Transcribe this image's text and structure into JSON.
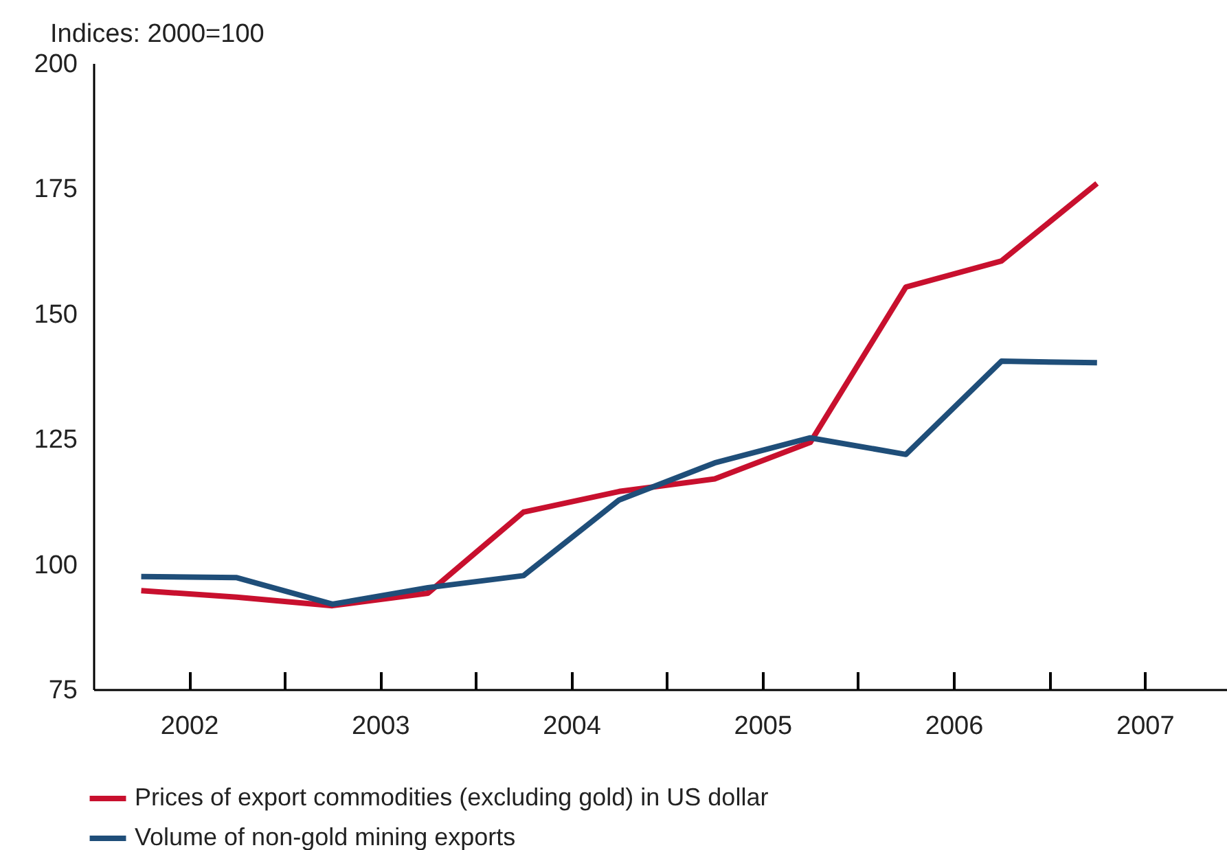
{
  "chart_data": {
    "type": "line",
    "ylabel": "Indices: 2000=100",
    "x": [
      2001.75,
      2002.25,
      2002.75,
      2003.25,
      2003.75,
      2004.25,
      2004.75,
      2005.25,
      2005.75,
      2006.25,
      2006.75
    ],
    "series": [
      {
        "name": "Prices of export commodities (excluding gold) in US dollar",
        "color": "#c8102e",
        "values": [
          94.7,
          93.4,
          91.7,
          94.2,
          110.4,
          114.5,
          117,
          124.3,
          155.3,
          160.5,
          176
        ]
      },
      {
        "name": "Volume of non-gold mining exports",
        "color": "#1f4e79",
        "values": [
          97.5,
          97.3,
          92,
          95.3,
          97.7,
          112.8,
          120.2,
          125.2,
          121.9,
          140.5,
          140.2
        ]
      }
    ],
    "xlim": [
      2001.5,
      2007.43
    ],
    "xticks": [
      2002,
      {
        "value": 2002.5,
        "label": null
      },
      2003,
      {
        "value": 2003.5,
        "label": null
      },
      2004,
      {
        "value": 2004.5,
        "label": null
      },
      2005,
      {
        "value": 2005.5,
        "label": null
      },
      2006,
      {
        "value": 2006.5,
        "label": null
      },
      2007
    ],
    "ylim": [
      75,
      200
    ],
    "yticks": [
      75,
      100,
      125,
      150,
      175,
      200
    ],
    "grid": false,
    "legend": "bottom",
    "marker": "none",
    "line_style": "solid"
  }
}
